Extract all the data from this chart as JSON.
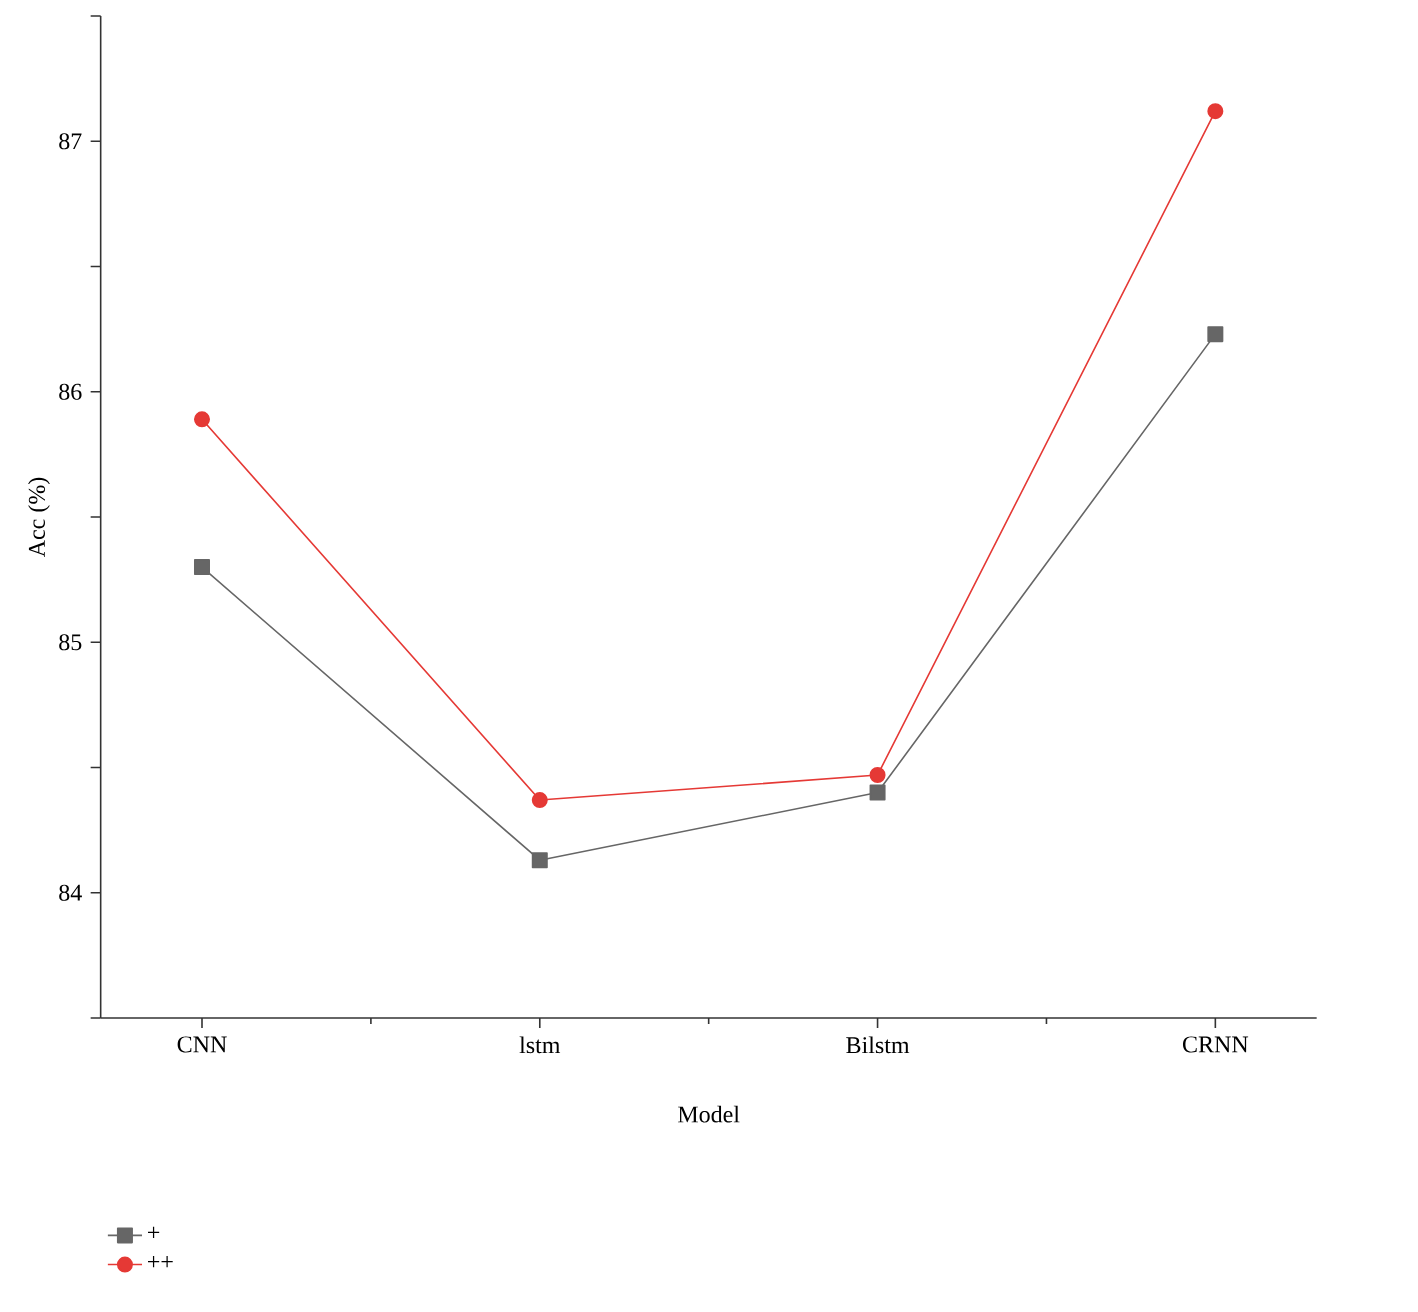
{
  "chart_data": {
    "type": "line",
    "xlabel": "Model",
    "ylabel": "Acc (%)",
    "categories": [
      "CNN",
      "lstm",
      "Bilstm",
      "CRNN"
    ],
    "series": [
      {
        "name": "+",
        "color": "#666666",
        "marker": "square",
        "values": [
          85.3,
          84.13,
          84.4,
          86.23
        ]
      },
      {
        "name": "++",
        "color": "#e53935",
        "marker": "circle",
        "values": [
          85.89,
          84.37,
          84.47,
          87.12
        ]
      }
    ],
    "ylim": [
      83.5,
      87.5
    ],
    "yticks": [
      {
        "value": 83.5,
        "label": null
      },
      84,
      {
        "value": 84.5,
        "label": null
      },
      85,
      {
        "value": 85.5,
        "label": null
      },
      86,
      {
        "value": 86.5,
        "label": null
      },
      87,
      {
        "value": 87.5,
        "label": null
      }
    ],
    "legend": "bottom left",
    "grid": false,
    "line_style": "solid"
  }
}
